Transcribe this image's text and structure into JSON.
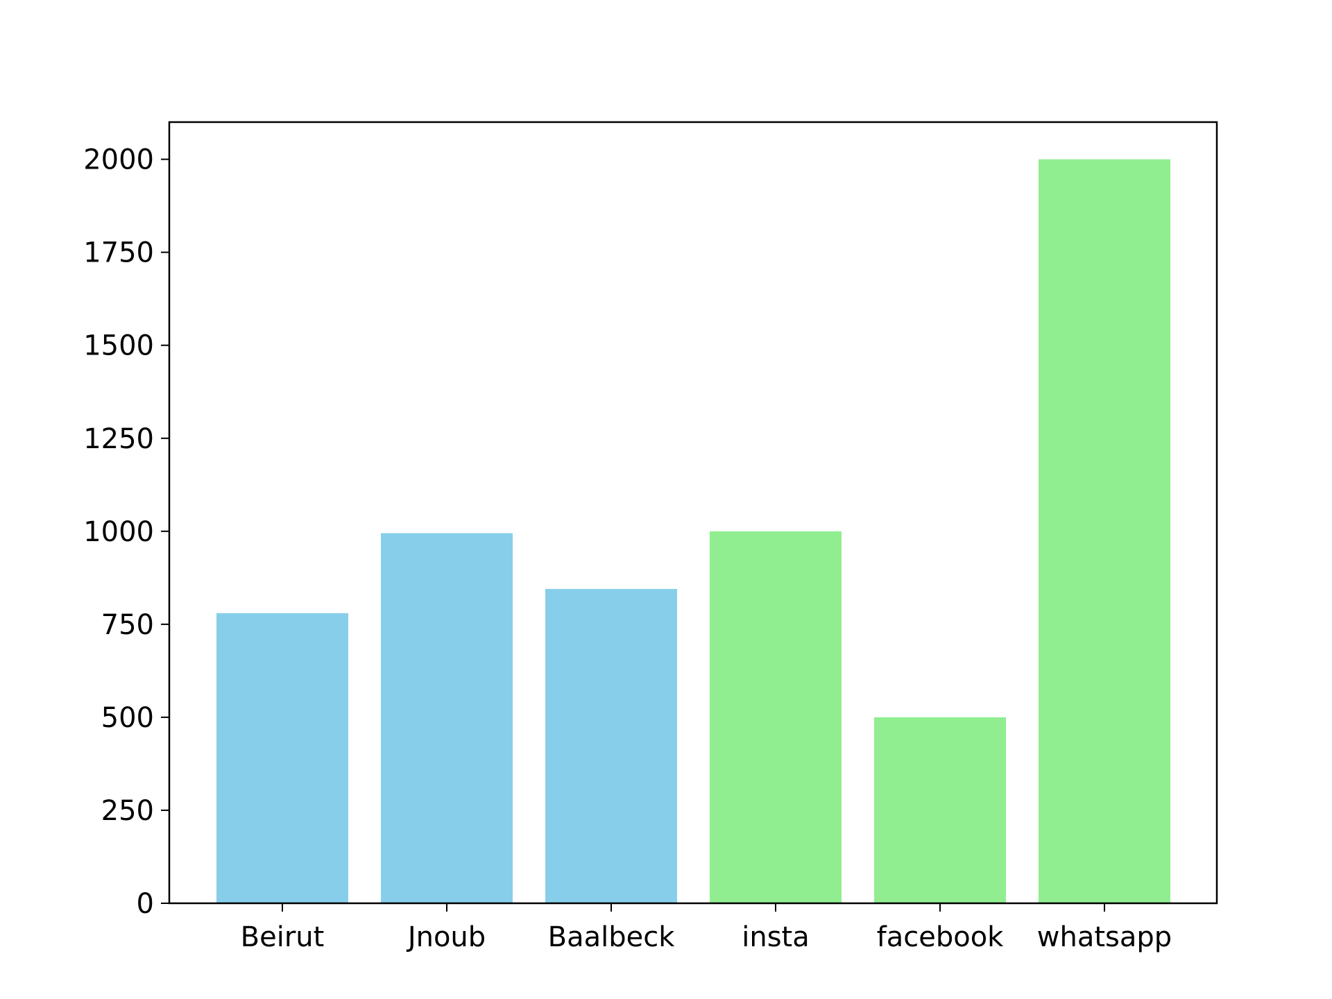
{
  "chart_data": {
    "type": "bar",
    "categories": [
      "Beirut",
      "Jnoub",
      "Baalbeck",
      "insta",
      "facebook",
      "whatsapp"
    ],
    "values": [
      780,
      995,
      845,
      1000,
      500,
      2000
    ],
    "bar_colors": [
      "#87CEEB",
      "#87CEEB",
      "#87CEEB",
      "#90EE90",
      "#90EE90",
      "#90EE90"
    ],
    "title": "",
    "xlabel": "",
    "ylabel": "",
    "ylim": [
      0,
      2100
    ],
    "yticks": [
      0,
      250,
      500,
      750,
      1000,
      1250,
      1500,
      1750,
      2000
    ],
    "grid": false,
    "legend": "none"
  }
}
